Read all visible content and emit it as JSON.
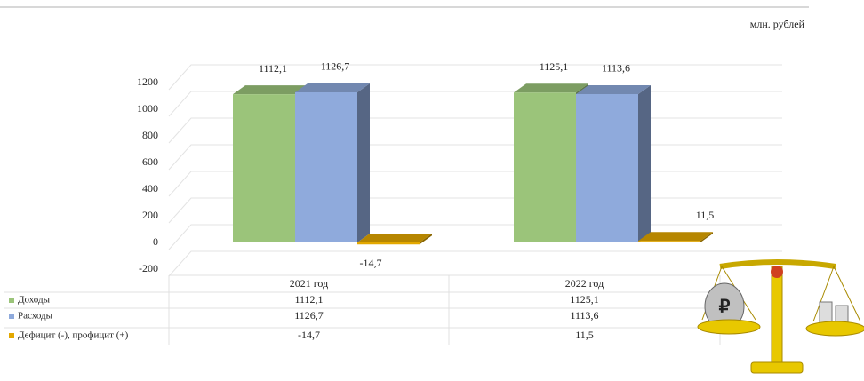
{
  "chart_data": {
    "type": "bar3d",
    "unit_label": "млн. рублей",
    "categories": [
      "2021 год",
      "2022 год"
    ],
    "series": [
      {
        "name": "Доходы",
        "color": "#9bc47a",
        "values": [
          1112.1,
          1125.1
        ],
        "value_labels": [
          "1112,1",
          "1125,1"
        ]
      },
      {
        "name": "Расходы",
        "color": "#8faadc",
        "values": [
          1126.7,
          1113.6
        ],
        "value_labels": [
          "1126,7",
          "1113,6"
        ]
      },
      {
        "name": "Дефицит (-), профицит (+)",
        "color": "#e3a800",
        "values": [
          -14.7,
          11.5
        ],
        "value_labels": [
          "-14,7",
          "11,5"
        ]
      }
    ],
    "ylim": [
      -200,
      1200
    ],
    "yticks": [
      -200,
      0,
      200,
      400,
      600,
      800,
      1000,
      1200
    ],
    "grid": true
  }
}
